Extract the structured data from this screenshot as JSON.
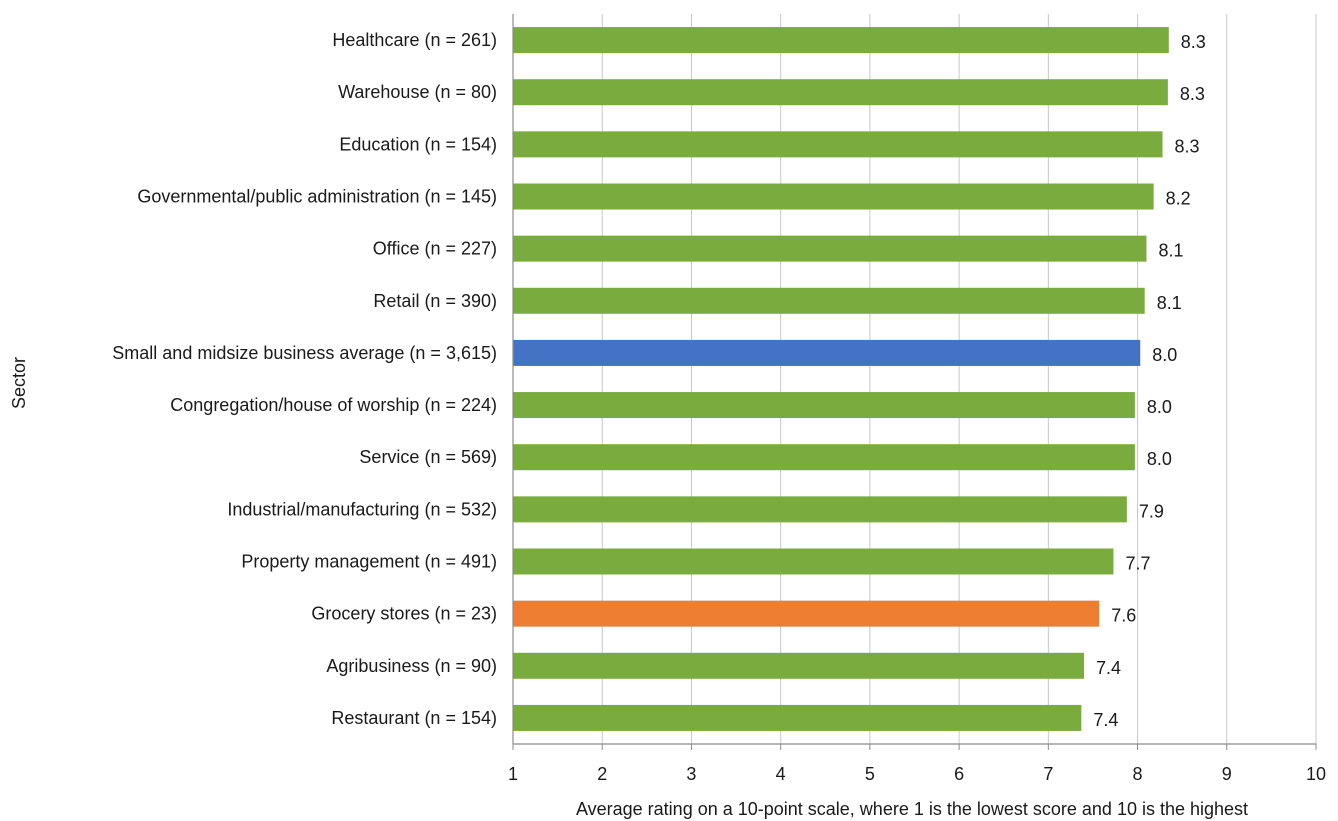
{
  "chart_data": {
    "type": "bar",
    "orientation": "horizontal",
    "xlabel": "Average rating on a 10-point scale, where 1 is the lowest score and 10 is the highest",
    "ylabel": "Sector",
    "xlim": [
      1,
      10
    ],
    "x_ticks": [
      "1",
      "2",
      "3",
      "4",
      "5",
      "6",
      "7",
      "8",
      "9",
      "10"
    ],
    "grid": "vertical",
    "colors": {
      "default": "#7aab3e",
      "average": "#4472c4",
      "highlight": "#ed7d31"
    },
    "categories": [
      "Healthcare (n = 261)",
      "Warehouse (n = 80)",
      "Education (n = 154)",
      "Governmental/public administration (n = 145)",
      "Office (n = 227)",
      "Retail (n = 390)",
      "Small and midsize business average (n = 3,615)",
      "Congregation/house of worship (n = 224)",
      "Service (n = 569)",
      "Industrial/manufacturing (n = 532)",
      "Property management (n = 491)",
      "Grocery stores (n = 23)",
      "Agribusiness (n = 90)",
      "Restaurant (n = 154)"
    ],
    "values": [
      8.35,
      8.34,
      8.28,
      8.18,
      8.1,
      8.08,
      8.03,
      7.97,
      7.97,
      7.88,
      7.73,
      7.57,
      7.4,
      7.37
    ],
    "data_labels": [
      "8.3",
      "8.3",
      "8.3",
      "8.2",
      "8.1",
      "8.1",
      "8.0",
      "8.0",
      "8.0",
      "7.9",
      "7.7",
      "7.6",
      "7.4",
      "7.4"
    ],
    "bar_color_keys": [
      "default",
      "default",
      "default",
      "default",
      "default",
      "default",
      "average",
      "default",
      "default",
      "default",
      "default",
      "highlight",
      "default",
      "default"
    ]
  }
}
